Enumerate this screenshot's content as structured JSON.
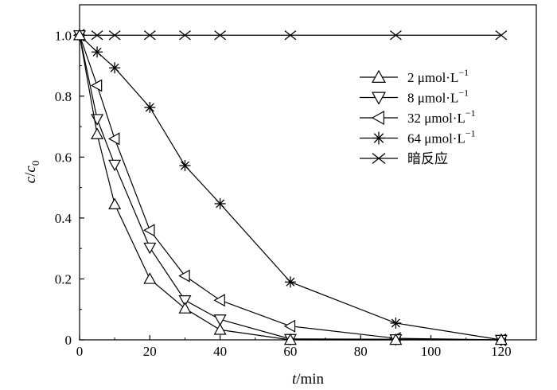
{
  "chart_data": {
    "type": "line",
    "title": "",
    "xlabel_italic": "t",
    "xlabel_rest": "/min",
    "ylabel_italic_c": "c",
    "ylabel_slash": "/",
    "ylabel_italic_c0": "c",
    "ylabel_sub": "0",
    "xlim": [
      0,
      130
    ],
    "ylim": [
      0,
      1.1
    ],
    "xticks": [
      0,
      20,
      40,
      60,
      80,
      100,
      120
    ],
    "xtick_labels": [
      "0",
      "20",
      "40",
      "60",
      "80",
      "100",
      "120"
    ],
    "yticks": [
      0,
      0.2,
      0.4,
      0.6,
      0.8,
      1.0
    ],
    "ytick_labels": [
      "0",
      "0.2",
      "0.4",
      "0.6",
      "0.8",
      "1.0"
    ],
    "grid": false,
    "legend_position": "right",
    "series": [
      {
        "name": "2 μmol·L",
        "name_sup": "−1",
        "marker": "triangle-up",
        "x": [
          0,
          5,
          10,
          20,
          30,
          40,
          60,
          90,
          120
        ],
        "y": [
          1.0,
          0.675,
          0.445,
          0.2,
          0.103,
          0.033,
          0.0,
          0.0,
          0.0
        ]
      },
      {
        "name": "8 μmol·L",
        "name_sup": "−1",
        "marker": "triangle-down",
        "x": [
          0,
          5,
          10,
          20,
          30,
          40,
          60,
          90,
          120
        ],
        "y": [
          1.0,
          0.725,
          0.575,
          0.303,
          0.13,
          0.067,
          0.003,
          0.002,
          0.0
        ]
      },
      {
        "name": "32 μmol·L",
        "name_sup": "−1",
        "marker": "triangle-left",
        "x": [
          0,
          5,
          10,
          20,
          30,
          40,
          60,
          90,
          120
        ],
        "y": [
          1.0,
          0.835,
          0.66,
          0.36,
          0.21,
          0.13,
          0.045,
          0.005,
          0.0
        ]
      },
      {
        "name": "64 μmol·L",
        "name_sup": "−1",
        "marker": "asterisk",
        "x": [
          0,
          5,
          10,
          20,
          30,
          40,
          60,
          90,
          120
        ],
        "y": [
          1.0,
          0.945,
          0.893,
          0.763,
          0.572,
          0.447,
          0.19,
          0.055,
          0.0
        ]
      },
      {
        "name": "暗反应",
        "name_sup": "",
        "marker": "x",
        "x": [
          0,
          5,
          10,
          20,
          30,
          40,
          60,
          90,
          120
        ],
        "y": [
          1.0,
          1.0,
          1.0,
          1.0,
          1.0,
          1.0,
          1.0,
          1.0,
          1.0
        ]
      }
    ]
  }
}
